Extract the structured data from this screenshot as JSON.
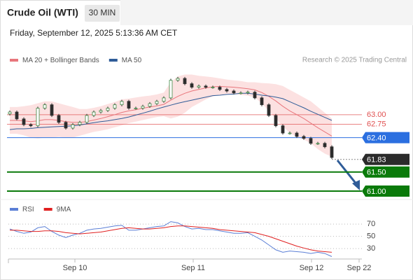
{
  "header": {
    "title": "Crude Oil (WTI)",
    "timeframe": "30 MIN",
    "timestamp": "Friday, September 12, 2025 5:13:36 AM CET"
  },
  "chart_data": [
    {
      "type": "candlestick",
      "annotation": "Research © 2025 Trading Central",
      "up_color": "#3f8a46",
      "down_color": "#2b2b2b",
      "x": [
        0,
        1,
        2,
        3,
        4,
        5,
        6,
        7,
        8,
        9,
        10,
        11,
        12,
        13,
        14,
        15,
        16,
        17,
        18,
        19,
        20,
        21,
        22,
        23,
        24,
        25,
        26,
        27,
        28,
        29,
        30,
        31,
        32,
        33,
        34,
        35,
        36,
        37,
        38,
        39,
        40,
        41,
        42,
        43,
        44,
        45,
        46
      ],
      "open": [
        63.02,
        63.07,
        62.89,
        62.74,
        62.71,
        63.17,
        63.26,
        62.98,
        62.8,
        62.65,
        62.74,
        62.8,
        62.98,
        63.07,
        63.11,
        63.17,
        63.26,
        63.35,
        63.17,
        63.17,
        63.22,
        63.29,
        63.35,
        63.44,
        63.9,
        63.95,
        63.81,
        63.72,
        63.75,
        63.72,
        63.72,
        63.66,
        63.62,
        63.57,
        63.57,
        63.59,
        63.44,
        63.26,
        62.98,
        62.71,
        62.52,
        62.52,
        62.43,
        62.38,
        62.25,
        62.25,
        62.16
      ],
      "high": [
        63.11,
        63.11,
        62.93,
        62.78,
        63.21,
        63.3,
        63.3,
        63.02,
        62.84,
        62.78,
        62.84,
        63.02,
        63.11,
        63.15,
        63.21,
        63.3,
        63.39,
        63.39,
        63.21,
        63.26,
        63.33,
        63.39,
        63.48,
        63.94,
        63.99,
        63.99,
        63.85,
        63.79,
        63.79,
        63.76,
        63.76,
        63.7,
        63.66,
        63.61,
        63.63,
        63.63,
        63.48,
        63.3,
        63.02,
        62.75,
        62.56,
        62.56,
        62.47,
        62.42,
        62.29,
        62.29,
        62.2
      ],
      "low": [
        62.98,
        62.85,
        62.7,
        62.67,
        62.67,
        63.13,
        62.94,
        62.76,
        62.61,
        62.61,
        62.7,
        62.76,
        62.94,
        63.03,
        63.07,
        63.13,
        63.22,
        63.13,
        63.13,
        63.13,
        63.18,
        63.25,
        63.31,
        63.4,
        63.86,
        63.77,
        63.68,
        63.68,
        63.68,
        63.68,
        63.62,
        63.58,
        63.53,
        63.53,
        63.53,
        63.4,
        63.22,
        62.94,
        62.67,
        62.48,
        62.48,
        62.39,
        62.34,
        62.21,
        62.21,
        62.12,
        61.84
      ],
      "close": [
        63.07,
        62.89,
        62.74,
        62.71,
        63.17,
        63.26,
        62.98,
        62.8,
        62.65,
        62.74,
        62.8,
        62.98,
        63.07,
        63.11,
        63.17,
        63.26,
        63.35,
        63.17,
        63.17,
        63.22,
        63.29,
        63.35,
        63.44,
        63.9,
        63.95,
        63.81,
        63.72,
        63.75,
        63.72,
        63.72,
        63.66,
        63.62,
        63.57,
        63.57,
        63.59,
        63.44,
        63.26,
        62.98,
        62.71,
        62.52,
        62.52,
        62.43,
        62.38,
        62.25,
        62.25,
        62.16,
        61.88
      ],
      "series": [
        {
          "name": "MA 20 + Bollinger Bands",
          "color": "#e8767c",
          "band_color": "#fcdcdc",
          "values": [
            62.85,
            62.85,
            62.84,
            62.82,
            62.84,
            62.87,
            62.87,
            62.85,
            62.82,
            62.8,
            62.8,
            62.82,
            62.86,
            62.9,
            62.95,
            63.0,
            63.06,
            63.1,
            63.13,
            63.17,
            63.2,
            63.23,
            63.27,
            63.38,
            63.48,
            63.56,
            63.62,
            63.66,
            63.7,
            63.73,
            63.74,
            63.73,
            63.72,
            63.7,
            63.68,
            63.65,
            63.58,
            63.48,
            63.36,
            63.22,
            63.1,
            63.0,
            62.9,
            62.78,
            62.66,
            62.55,
            62.44
          ],
          "upper": [
            63.2,
            63.2,
            63.22,
            63.25,
            63.3,
            63.35,
            63.35,
            63.3,
            63.25,
            63.2,
            63.15,
            63.15,
            63.18,
            63.22,
            63.28,
            63.33,
            63.4,
            63.42,
            63.45,
            63.48,
            63.5,
            63.53,
            63.58,
            63.85,
            64.0,
            64.05,
            64.05,
            64.02,
            64.0,
            63.98,
            63.95,
            63.92,
            63.9,
            63.88,
            63.85,
            63.85,
            63.83,
            63.82,
            63.8,
            63.75,
            63.65,
            63.55,
            63.45,
            63.35,
            63.2,
            63.05,
            62.9
          ],
          "lower": [
            62.5,
            62.5,
            62.46,
            62.4,
            62.38,
            62.4,
            62.4,
            62.42,
            62.4,
            62.4,
            62.45,
            62.5,
            62.55,
            62.58,
            62.62,
            62.67,
            62.72,
            62.78,
            62.82,
            62.86,
            62.9,
            62.94,
            62.96,
            62.9,
            62.95,
            63.05,
            63.2,
            63.3,
            63.4,
            63.48,
            63.52,
            63.54,
            63.54,
            63.52,
            63.5,
            63.45,
            63.3,
            63.1,
            62.9,
            62.7,
            62.52,
            62.42,
            62.35,
            62.25,
            62.1,
            61.98,
            61.9
          ]
        },
        {
          "name": "MA 50",
          "color": "#2f5c98",
          "values": [
            62.61,
            62.63,
            62.63,
            62.64,
            62.66,
            62.67,
            62.68,
            62.69,
            62.7,
            62.71,
            62.73,
            62.76,
            62.79,
            62.82,
            62.84,
            62.87,
            62.9,
            62.94,
            62.99,
            63.04,
            63.09,
            63.15,
            63.2,
            63.25,
            63.3,
            63.34,
            63.38,
            63.42,
            63.46,
            63.5,
            63.51,
            63.53,
            63.54,
            63.56,
            63.56,
            63.54,
            63.51,
            63.49,
            63.46,
            63.42,
            63.34,
            63.26,
            63.18,
            63.09,
            63.01,
            62.93,
            62.85
          ]
        }
      ],
      "levels": [
        {
          "value": 63,
          "label": "63.00",
          "color": "#e05050",
          "style": "text"
        },
        {
          "value": 62.75,
          "label": "62.75",
          "color": "#e05050",
          "style": "text"
        },
        {
          "value": 62.4,
          "label": "62.40",
          "color": "#2b6fe0",
          "style": "box"
        },
        {
          "value": 61.83,
          "label": "61.83",
          "color": "#2b2b2b",
          "style": "box"
        },
        {
          "value": 61.5,
          "label": "61.50",
          "color": "#0a7a0a",
          "style": "box"
        },
        {
          "value": 61,
          "label": "61.00",
          "color": "#0a7a0a",
          "style": "box"
        }
      ],
      "xlim": [
        -0.2,
        50.3
      ],
      "ylim": [
        60.78,
        64.17
      ],
      "xticks": [
        {
          "value": 9.3,
          "label": "Sep 10"
        },
        {
          "value": 26.2,
          "label": "Sep 11"
        },
        {
          "value": 43.1,
          "label": "Sep 12"
        },
        {
          "value": 49.9,
          "label": "Sep 22"
        }
      ]
    },
    {
      "type": "line",
      "x": [
        0,
        1,
        2,
        3,
        4,
        5,
        6,
        7,
        8,
        9,
        10,
        11,
        12,
        13,
        14,
        15,
        16,
        17,
        18,
        19,
        20,
        21,
        22,
        23,
        24,
        25,
        26,
        27,
        28,
        29,
        30,
        31,
        32,
        33,
        34,
        35,
        36,
        37,
        38,
        39,
        40,
        41,
        42,
        43,
        44,
        45,
        46
      ],
      "series": [
        {
          "name": "RSI",
          "color": "#5b7fd6",
          "values": [
            62,
            58,
            55,
            57,
            64,
            66,
            58,
            52,
            48,
            52,
            55,
            60,
            62,
            63,
            65,
            67,
            68,
            60,
            60,
            62,
            64,
            66,
            67,
            74,
            72,
            66,
            62,
            63,
            61,
            61,
            59,
            57,
            55,
            55,
            56,
            50,
            44,
            36,
            28,
            24,
            26,
            25,
            24,
            22,
            24,
            22,
            17
          ]
        },
        {
          "name": "9MA",
          "color": "#e02020",
          "values": [
            60,
            60,
            59,
            58,
            58,
            59,
            59,
            58,
            56,
            55,
            54,
            55,
            56,
            57,
            59,
            61,
            63,
            64,
            63,
            62,
            62,
            63,
            64,
            66,
            67,
            67,
            66,
            65,
            64,
            63,
            61,
            60,
            59,
            58,
            57,
            56,
            53,
            50,
            46,
            42,
            38,
            34,
            31,
            28,
            26,
            25,
            24
          ]
        }
      ],
      "xlim": [
        -0.2,
        50.3
      ],
      "ylim": [
        13,
        93
      ],
      "yticks": [
        70,
        50,
        30
      ]
    }
  ]
}
